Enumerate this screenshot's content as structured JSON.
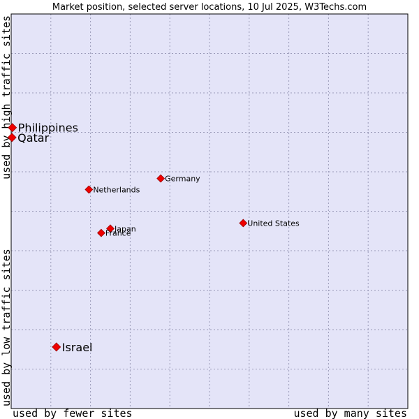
{
  "chart_data": {
    "type": "scatter",
    "title": "Market position, selected server locations, 10 Jul 2025, W3Techs.com",
    "xlabel_left": "used by fewer sites",
    "xlabel_right": "used by many sites",
    "ylabel_bottom": "used by low traffic sites",
    "ylabel_top": "used by high traffic sites",
    "xlim": [
      0,
      100
    ],
    "ylim": [
      0,
      100
    ],
    "grid": true,
    "colors": {
      "plot_bg": "#e4e4f8",
      "grid": "#9a9ab8",
      "marker": "#ee0000",
      "marker_edge": "#990000"
    },
    "points": [
      {
        "label": "Philippines",
        "x": 0.3,
        "y": 71.2,
        "emphasis": true
      },
      {
        "label": "Qatar",
        "x": 0.2,
        "y": 68.7,
        "emphasis": true
      },
      {
        "label": "Germany",
        "x": 37.7,
        "y": 58.3,
        "emphasis": false
      },
      {
        "label": "Netherlands",
        "x": 19.6,
        "y": 55.5,
        "emphasis": false
      },
      {
        "label": "United States",
        "x": 58.5,
        "y": 47.0,
        "emphasis": false
      },
      {
        "label": "Japan",
        "x": 25.0,
        "y": 45.6,
        "emphasis": false
      },
      {
        "label": "France",
        "x": 22.7,
        "y": 44.5,
        "emphasis": false
      },
      {
        "label": "Israel",
        "x": 11.4,
        "y": 15.6,
        "emphasis": true
      }
    ]
  }
}
